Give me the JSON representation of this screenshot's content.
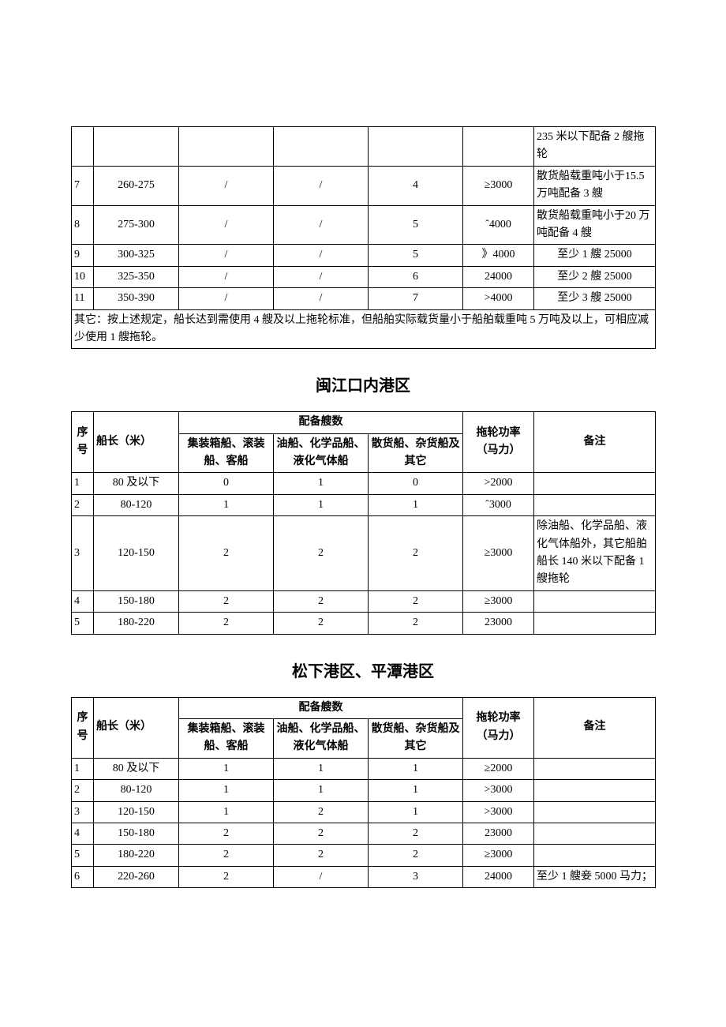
{
  "table1": {
    "rows": [
      {
        "seq": "",
        "len": "",
        "a": "",
        "b": "",
        "c": "",
        "pow": "",
        "note": "235 米以下配备 2 艘拖轮"
      },
      {
        "seq": "7",
        "len": "260-275",
        "a": "/",
        "b": "/",
        "c": "4",
        "pow": "≥3000",
        "note": "散货船载重吨小于15.5 万吨配备 3 艘"
      },
      {
        "seq": "8",
        "len": "275-300",
        "a": "/",
        "b": "/",
        "c": "5",
        "pow": "ˆ4000",
        "note": "散货船载重吨小于20 万吨配备 4 艘"
      },
      {
        "seq": "9",
        "len": "300-325",
        "a": "/",
        "b": "/",
        "c": "5",
        "pow": "》4000",
        "note": "至少 1 艘 25000"
      },
      {
        "seq": "10",
        "len": "325-350",
        "a": "/",
        "b": "/",
        "c": "6",
        "pow": "24000",
        "note": "至少 2 艘 25000"
      },
      {
        "seq": "11",
        "len": "350-390",
        "a": "/",
        "b": "/",
        "c": "7",
        "pow": ">4000",
        "note": "至少 3 艘 25000"
      }
    ],
    "footnote": "其它：按上述规定，船长达到需使用 4 艘及以上拖轮标准，但船舶实际载货量小于船舶载重吨 5 万吨及以上，可相应减少使用 1 艘拖轮。"
  },
  "section2": {
    "title": "闽江口内港区",
    "headers": {
      "seq": "序号",
      "len": "船长（米）",
      "group": "配备艘数",
      "a": "集装箱船、滚装船、客船",
      "b": "油船、化学品船、液化气体船",
      "c": "散货船、杂货船及其它",
      "pow": "拖轮功率（马力）",
      "note": "备注"
    },
    "rows": [
      {
        "seq": "1",
        "len": "80 及以下",
        "a": "0",
        "b": "1",
        "c": "0",
        "pow": ">2000",
        "note": ""
      },
      {
        "seq": "2",
        "len": "80-120",
        "a": "1",
        "b": "1",
        "c": "1",
        "pow": "ˆ3000",
        "note": ""
      },
      {
        "seq": "3",
        "len": "120-150",
        "a": "2",
        "b": "2",
        "c": "2",
        "pow": "≥3000",
        "note": "除油船、化学品船、液化气体船外，其它船舶船长 140 米以下配备 1 艘拖轮"
      },
      {
        "seq": "4",
        "len": "150-180",
        "a": "2",
        "b": "2",
        "c": "2",
        "pow": "≥3000",
        "note": ""
      },
      {
        "seq": "5",
        "len": "180-220",
        "a": "2",
        "b": "2",
        "c": "2",
        "pow": "23000",
        "note": ""
      }
    ]
  },
  "section3": {
    "title": "松下港区、平潭港区",
    "headers": {
      "seq": "序号",
      "len": "船长（米）",
      "group": "配备艘数",
      "a": "集装箱船、滚装船、客船",
      "b": "油船、化学品船、液化气体船",
      "c": "散货船、杂货船及其它",
      "pow": "拖轮功率（马力）",
      "note": "备注"
    },
    "rows": [
      {
        "seq": "1",
        "len": "80 及以下",
        "a": "1",
        "b": "1",
        "c": "1",
        "pow": "≥2000",
        "note": ""
      },
      {
        "seq": "2",
        "len": "80-120",
        "a": "1",
        "b": "1",
        "c": "1",
        "pow": ">3000",
        "note": ""
      },
      {
        "seq": "3",
        "len": "120-150",
        "a": "1",
        "b": "2",
        "c": "1",
        "pow": ">3000",
        "note": ""
      },
      {
        "seq": "4",
        "len": "150-180",
        "a": "2",
        "b": "2",
        "c": "2",
        "pow": "23000",
        "note": ""
      },
      {
        "seq": "5",
        "len": "180-220",
        "a": "2",
        "b": "2",
        "c": "2",
        "pow": "≥3000",
        "note": ""
      },
      {
        "seq": "6",
        "len": "220-260",
        "a": "2",
        "b": "/",
        "c": "3",
        "pow": "24000",
        "note": "至少 1 艘妾 5000 马力；"
      }
    ]
  }
}
